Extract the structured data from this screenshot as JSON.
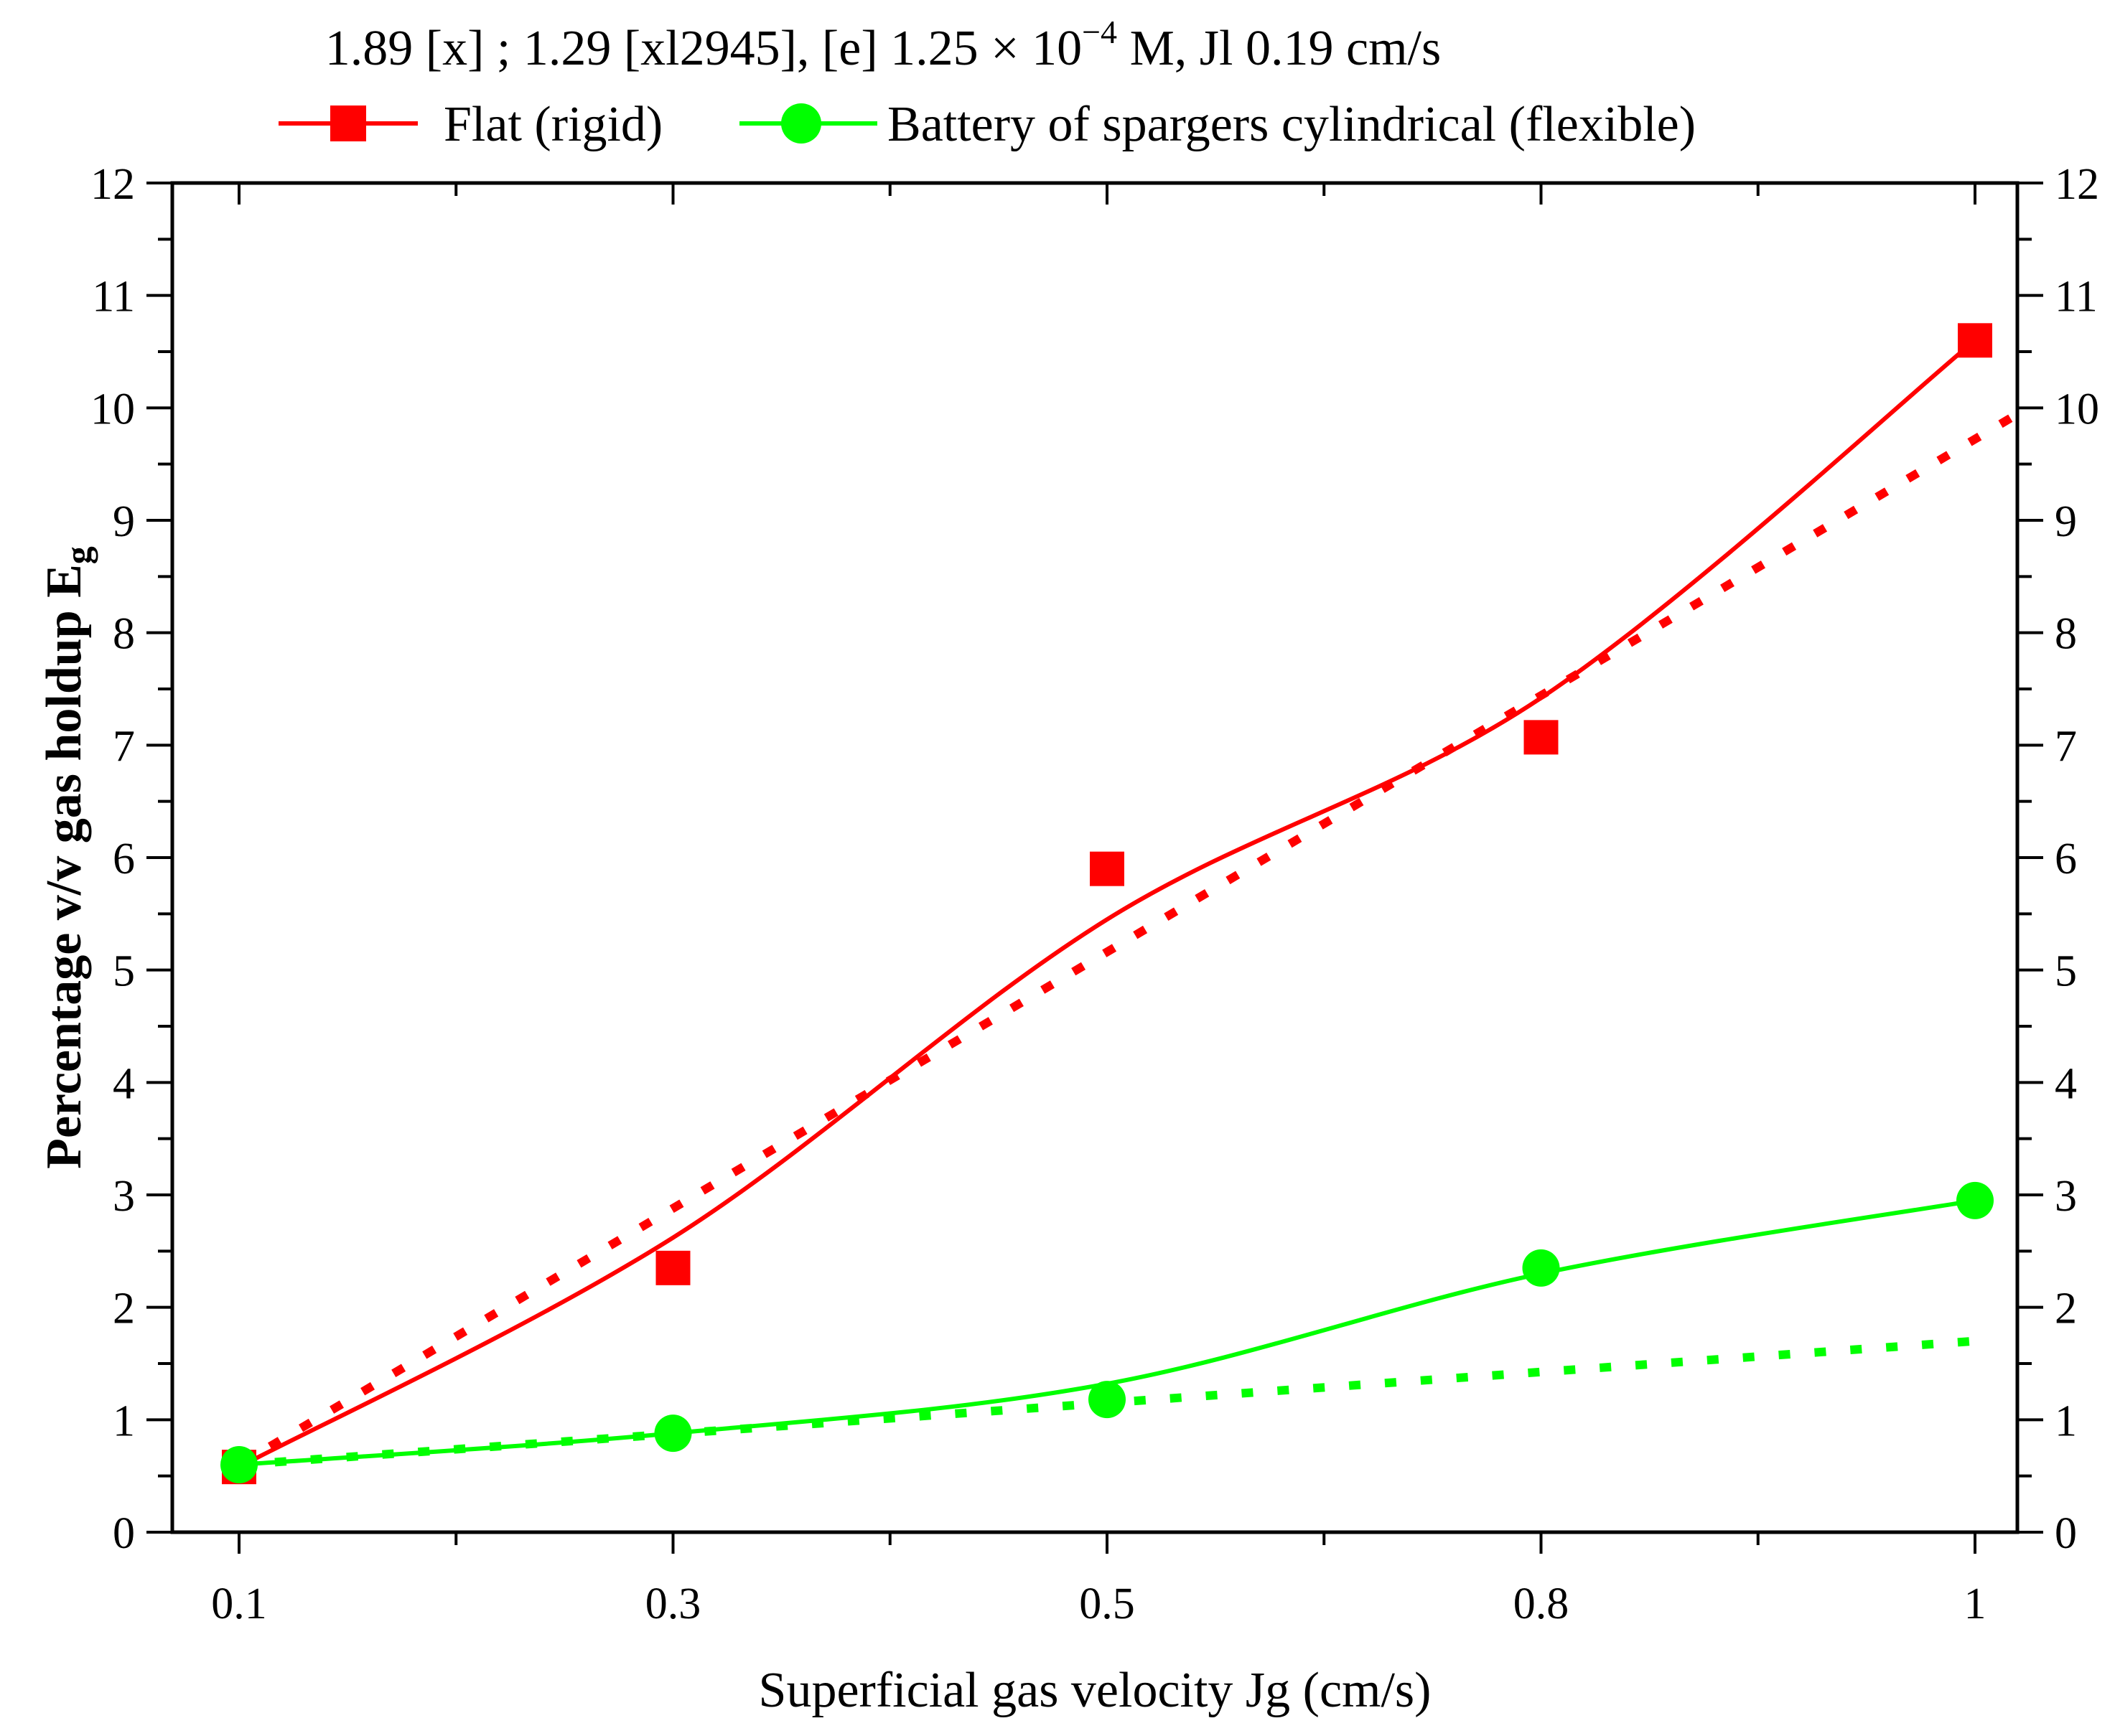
{
  "chart_data": {
    "type": "line",
    "title": {
      "main": "1.89 [x] ; 1.29 [xl2945], [e] 1.25 × 10",
      "superscript": "−4",
      "tail": " M, Jl 0.19 cm/s"
    },
    "xlabel": "Superficial gas velocity Jg (cm/s)",
    "ylabel": {
      "main": "Percentage v/v gas holdup E",
      "subscript": "g"
    },
    "categories": [
      "0.1",
      "0.3",
      "0.5",
      "0.8",
      "1"
    ],
    "ylim": [
      0,
      12
    ],
    "yticks": [
      "0",
      "1",
      "2",
      "3",
      "4",
      "5",
      "6",
      "7",
      "8",
      "9",
      "10",
      "11",
      "12"
    ],
    "right_yticks": [
      "0",
      "1",
      "2",
      "3",
      "4",
      "5",
      "6",
      "7",
      "8",
      "9",
      "10",
      "11",
      "12"
    ],
    "series": [
      {
        "name": "Flat (rigid)",
        "color": "#ff0000",
        "marker": "square",
        "values": [
          0.58,
          2.35,
          5.9,
          7.07,
          10.6
        ],
        "smooth_fit": [
          0.58,
          2.62,
          5.45,
          7.42,
          10.6
        ],
        "trend_line": {
          "from": [
            0,
            0.6
          ],
          "to": [
            4.1,
            9.95
          ]
        }
      },
      {
        "name": "Battery of spargers cylindrical (flexible)",
        "color": "#00ff00",
        "marker": "circle",
        "values": [
          0.6,
          0.88,
          1.18,
          2.35,
          2.95
        ],
        "smooth_fit": [
          0.6,
          0.88,
          1.32,
          2.3,
          2.95
        ],
        "trend_line": {
          "from": [
            0,
            0.6
          ],
          "to": [
            4.0,
            1.7
          ]
        }
      }
    ],
    "legend_position": "top-center",
    "grid": false
  }
}
